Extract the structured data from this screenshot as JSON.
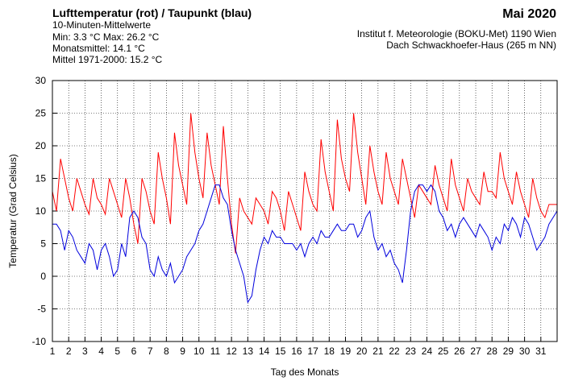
{
  "chart_data": {
    "type": "line",
    "title": "Lufttemperatur (rot) / Taupunkt (blau)",
    "subtitle": "10-Minuten-Mittelwerte",
    "info_lines": [
      "Min:   3.3 °C   Max:  26.2 °C",
      "Monatsmittel:  14.1 °C",
      "Mittel 1971-2000:  15.2 °C"
    ],
    "period": "Mai 2020",
    "source_lines": [
      "Institut f. Meteorologie (BOKU-Met) 1190 Wien",
      "Dach Schwackhoefer-Haus (265 m NN)"
    ],
    "ylabel": "Temperatur (Grad Celsius)",
    "xlabel": "Tag des Monats",
    "xlim": [
      1,
      32
    ],
    "xticks": [
      1,
      2,
      3,
      4,
      5,
      6,
      7,
      8,
      9,
      10,
      11,
      12,
      13,
      14,
      15,
      16,
      17,
      18,
      19,
      20,
      21,
      22,
      23,
      24,
      25,
      26,
      27,
      28,
      29,
      30,
      31
    ],
    "ylim": [
      -10,
      30
    ],
    "yticks": [
      -10,
      -5,
      0,
      5,
      10,
      15,
      20,
      25,
      30
    ],
    "grid": true,
    "x": [
      1,
      1.25,
      1.5,
      1.75,
      2,
      2.25,
      2.5,
      2.75,
      3,
      3.25,
      3.5,
      3.75,
      4,
      4.25,
      4.5,
      4.75,
      5,
      5.25,
      5.5,
      5.75,
      6,
      6.25,
      6.5,
      6.75,
      7,
      7.25,
      7.5,
      7.75,
      8,
      8.25,
      8.5,
      8.75,
      9,
      9.25,
      9.5,
      9.75,
      10,
      10.25,
      10.5,
      10.75,
      11,
      11.25,
      11.5,
      11.75,
      12,
      12.25,
      12.5,
      12.75,
      13,
      13.25,
      13.5,
      13.75,
      14,
      14.25,
      14.5,
      14.75,
      15,
      15.25,
      15.5,
      15.75,
      16,
      16.25,
      16.5,
      16.75,
      17,
      17.25,
      17.5,
      17.75,
      18,
      18.25,
      18.5,
      18.75,
      19,
      19.25,
      19.5,
      19.75,
      20,
      20.25,
      20.5,
      20.75,
      21,
      21.25,
      21.5,
      21.75,
      22,
      22.25,
      22.5,
      22.75,
      23,
      23.25,
      23.5,
      23.75,
      24,
      24.25,
      24.5,
      24.75,
      25,
      25.25,
      25.5,
      25.75,
      26,
      26.25,
      26.5,
      26.75,
      27,
      27.25,
      27.5,
      27.75,
      28,
      28.25,
      28.5,
      28.75,
      29,
      29.25,
      29.5,
      29.75,
      30,
      30.25,
      30.5,
      30.75,
      31,
      31.25,
      31.5,
      31.75,
      32
    ],
    "series": [
      {
        "name": "Lufttemperatur",
        "color": "#ff0000",
        "values": [
          13,
          10,
          18,
          15,
          12,
          10,
          15,
          13,
          11,
          9.5,
          15,
          12,
          11,
          9.5,
          15,
          13,
          11,
          9,
          15,
          12,
          8,
          5,
          15,
          13,
          10,
          8,
          19,
          15,
          12,
          8,
          22,
          17,
          14,
          11,
          25,
          19,
          15,
          12,
          22,
          17,
          14,
          11,
          23,
          15,
          8,
          3.5,
          12,
          10,
          9,
          8,
          12,
          11,
          10,
          8,
          13,
          12,
          10,
          7,
          13,
          11,
          9,
          7,
          16,
          13,
          11,
          10,
          21,
          16,
          13,
          10,
          24,
          18,
          15,
          13,
          25,
          19,
          15,
          11,
          20,
          16,
          13,
          11,
          19,
          15,
          13,
          11,
          18,
          15,
          12,
          9,
          14,
          13,
          12,
          11,
          17,
          14,
          12,
          10,
          18,
          14,
          12,
          10,
          15,
          13,
          12,
          11,
          16,
          13,
          13,
          12,
          19,
          15,
          13,
          11,
          16,
          13,
          11,
          9,
          15,
          12,
          10,
          9,
          11,
          11,
          11
        ]
      },
      {
        "name": "Taupunkt",
        "color": "#0000dd",
        "values": [
          8,
          8,
          7,
          4,
          7,
          6,
          4,
          3,
          2,
          5,
          4,
          1,
          4,
          5,
          3,
          0,
          1,
          5,
          3,
          9,
          10,
          9,
          6,
          5,
          1,
          0,
          3,
          1,
          0,
          2,
          -1,
          0,
          1,
          3,
          4,
          5,
          7,
          8,
          10,
          12,
          14,
          14,
          12,
          11,
          7,
          4,
          2,
          0,
          -4,
          -3,
          1,
          4,
          6,
          5,
          7,
          6,
          6,
          5,
          5,
          5,
          4,
          5,
          3,
          5,
          6,
          5,
          7,
          6,
          6,
          7,
          8,
          7,
          7,
          8,
          8,
          6,
          7,
          9,
          10,
          6,
          4,
          5,
          3,
          4,
          2,
          1,
          -1,
          4,
          10,
          13,
          14,
          14,
          13,
          14,
          13,
          10,
          9,
          7,
          8,
          6,
          8,
          9,
          8,
          7,
          6,
          8,
          7,
          6,
          4,
          6,
          5,
          8,
          7,
          9,
          8,
          6,
          9,
          8,
          6,
          4,
          5,
          6,
          8,
          9,
          10
        ]
      }
    ]
  }
}
